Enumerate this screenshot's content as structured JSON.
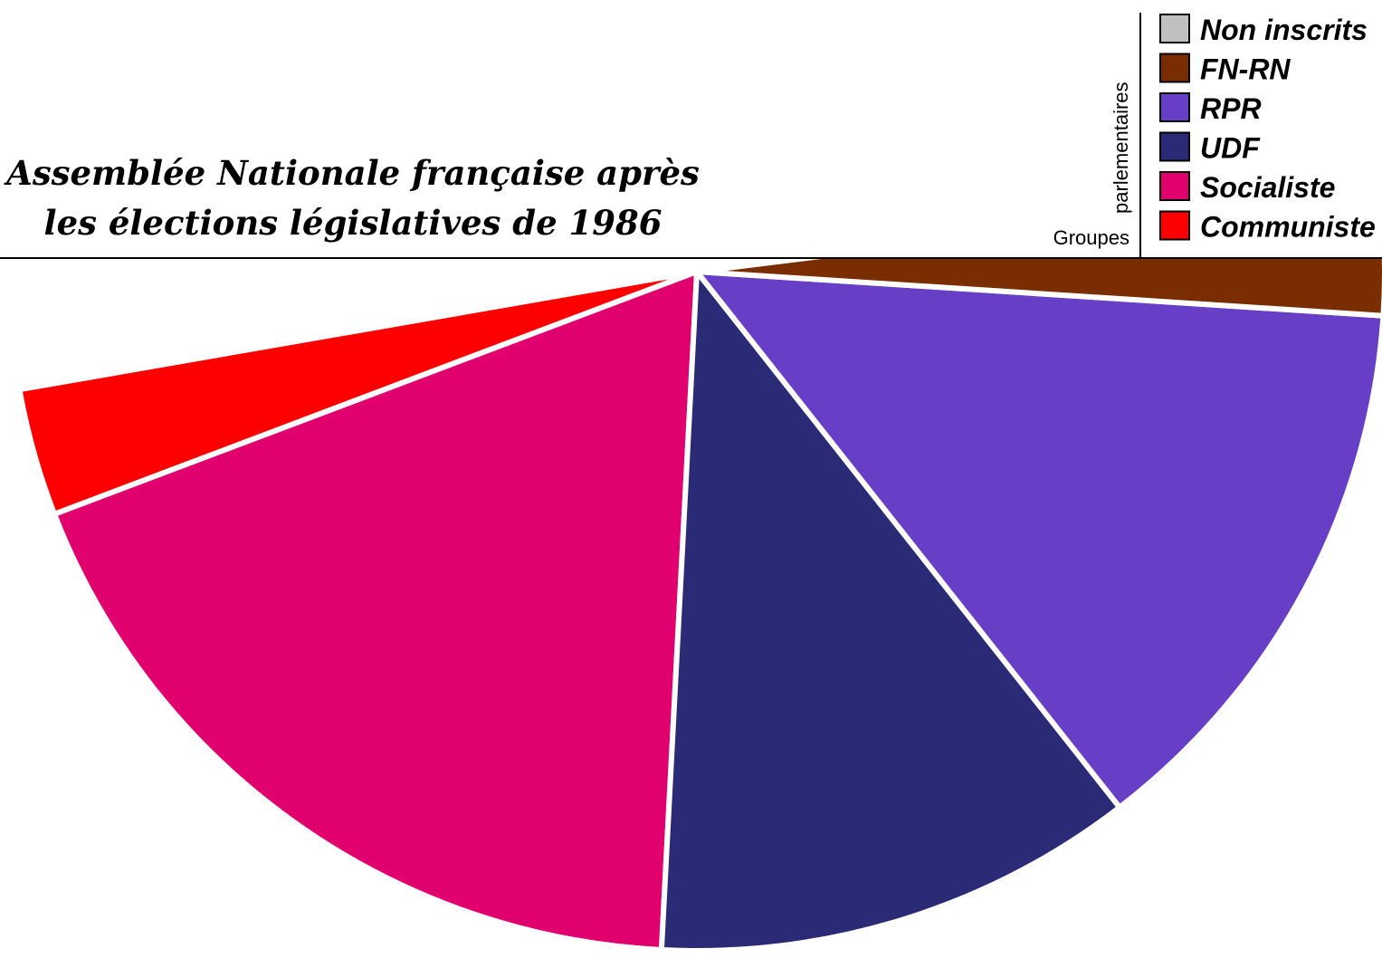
{
  "chart_data": {
    "type": "pie",
    "variant": "hemicycle",
    "title_lines": [
      "Assemblée Nationale française après",
      "les élections législatives de 1986"
    ],
    "legend_title": [
      "Groupes",
      "parlementaires"
    ],
    "legend_placement": "top-right",
    "slices_left_to_right": [
      {
        "label": "Communiste",
        "value": 35,
        "color": "#ff0000"
      },
      {
        "label": "Socialiste",
        "value": 212,
        "color": "#e0006e"
      },
      {
        "label": "UDF",
        "value": 131,
        "color": "#2a2a76"
      },
      {
        "label": "RPR",
        "value": 155,
        "color": "#673ec6"
      },
      {
        "label": "FN-RN",
        "value": 35,
        "color": "#7a2e00"
      },
      {
        "label": "Non inscrits",
        "value": 9,
        "color": "#c0c0c0"
      }
    ],
    "legend_order": [
      "Non inscrits",
      "FN-RN",
      "RPR",
      "UDF",
      "Socialiste",
      "Communiste"
    ]
  }
}
